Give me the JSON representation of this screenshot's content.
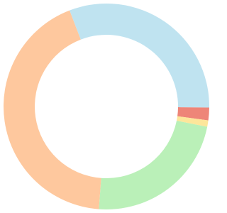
{
  "chart_data": {
    "type": "donut",
    "values": [
      31,
      2,
      1,
      23,
      43
    ],
    "colors": [
      "#bfe3f0",
      "#ee8578",
      "#fde69a",
      "#baf0b8",
      "#fec89e"
    ]
  }
}
